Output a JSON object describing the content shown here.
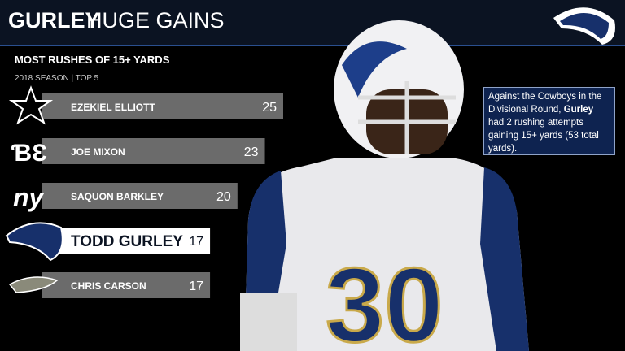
{
  "chart_data": {
    "type": "bar",
    "orientation": "horizontal",
    "title_bold": "GURLEY",
    "title": "HUGE GAINS",
    "subtitle": "MOST RUSHES OF 15+ YARDS",
    "caption": "2018 SEASON | TOP 5",
    "categories": [
      "EZEKIEL ELLIOTT",
      "JOE MIXON",
      "SAQUON BARKLEY",
      "TODD GURLEY",
      "CHRIS CARSON"
    ],
    "values": [
      25,
      23,
      20,
      17,
      17
    ],
    "colors": [
      "#6b6b6b",
      "#6b6b6b",
      "#6b6b6b",
      "#ffffff",
      "#6b6b6b"
    ],
    "annotation": {
      "before": "Against the Cowboys in the Divisional Round,",
      "bold": "Gurley",
      "after": "had 2 rushing attempts gaining 15+ yards (53 total yards)."
    }
  }
}
